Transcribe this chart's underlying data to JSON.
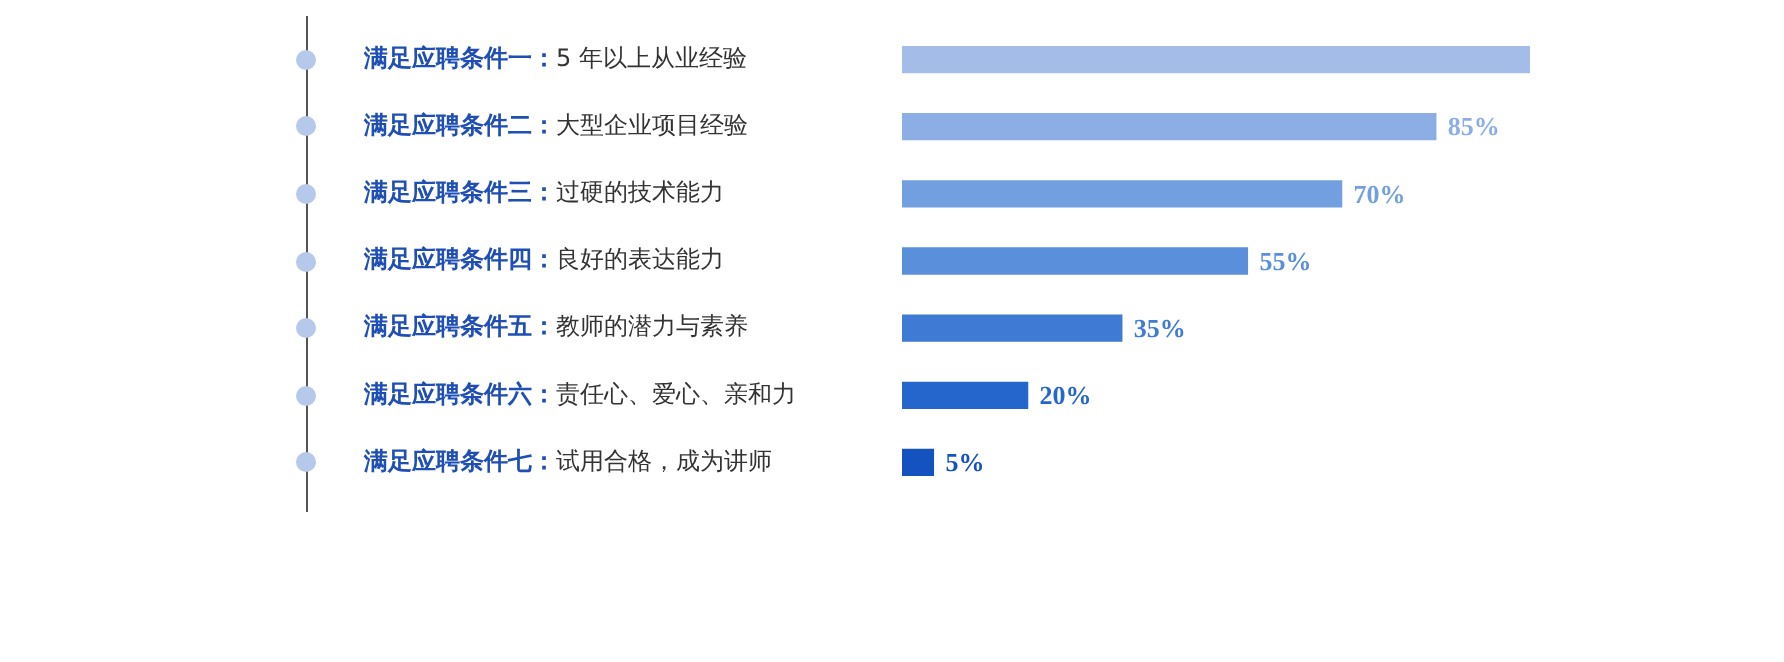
{
  "chart_data": {
    "type": "bar",
    "orientation": "horizontal",
    "categories": [
      "满足应聘条件一：5 年以上从业经验",
      "满足应聘条件二：大型企业项目经验",
      "满足应聘条件三：过硬的技术能力",
      "满足应聘条件四：良好的表达能力",
      "满足应聘条件五：教师的潜力与素养",
      "满足应聘条件六：责任心、爱心、亲和力",
      "满足应聘条件七：试用合格，成为讲师"
    ],
    "values": [
      100,
      85,
      70,
      55,
      35,
      20,
      5
    ],
    "colors": [
      "#a3bde8",
      "#8caee4",
      "#719fe0",
      "#5a8fdc",
      "#3f7bd4",
      "#2566cc",
      "#1452c0"
    ],
    "value_labels": [
      null,
      "85%",
      "70%",
      "55%",
      "35%",
      "20%",
      "5%"
    ]
  }
}
